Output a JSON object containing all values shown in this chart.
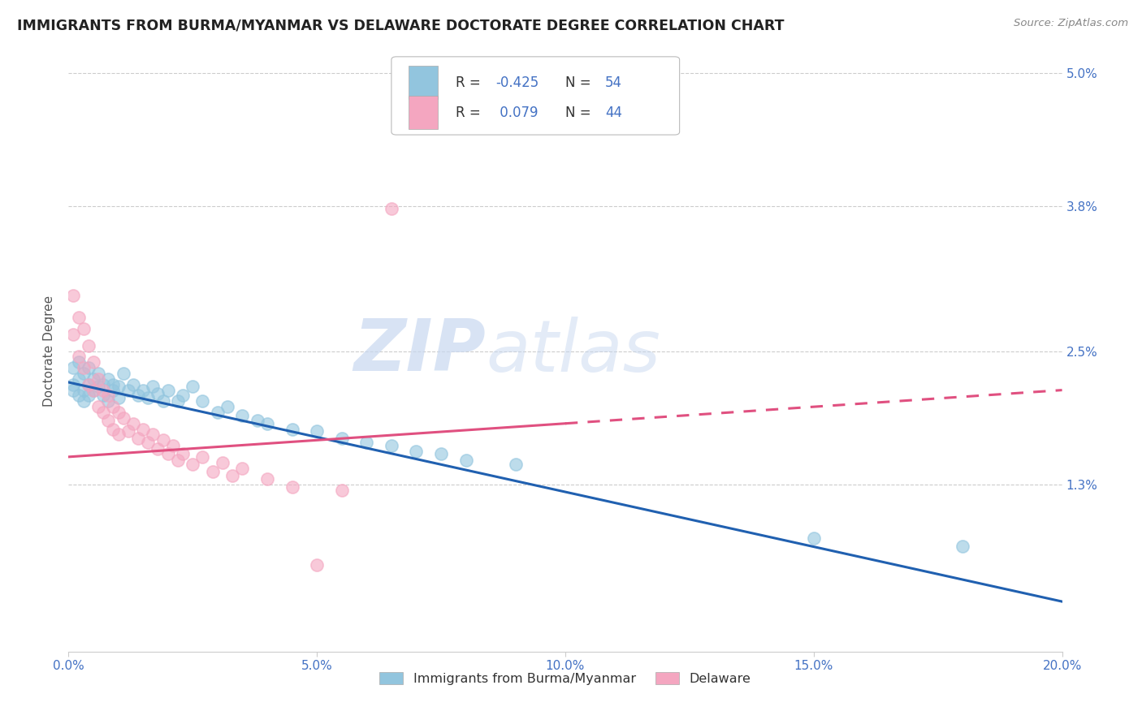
{
  "title": "IMMIGRANTS FROM BURMA/MYANMAR VS DELAWARE DOCTORATE DEGREE CORRELATION CHART",
  "source_text": "Source: ZipAtlas.com",
  "ylabel": "Doctorate Degree",
  "xlim": [
    0.0,
    0.2
  ],
  "ylim": [
    -0.002,
    0.052
  ],
  "yticks": [
    0.013,
    0.025,
    0.038,
    0.05
  ],
  "ytick_labels": [
    "1.3%",
    "2.5%",
    "3.8%",
    "5.0%"
  ],
  "xticks": [
    0.0,
    0.05,
    0.1,
    0.15,
    0.2
  ],
  "xtick_labels": [
    "0.0%",
    "5.0%",
    "10.0%",
    "15.0%",
    "20.0%"
  ],
  "blue_color": "#92c5de",
  "pink_color": "#f4a6c0",
  "blue_line_color": "#2060b0",
  "pink_line_color": "#e05080",
  "R_blue": -0.425,
  "N_blue": 54,
  "R_pink": 0.079,
  "N_pink": 44,
  "legend_blue_label": "Immigrants from Burma/Myanmar",
  "legend_pink_label": "Delaware",
  "watermark_zip": "ZIP",
  "watermark_atlas": "atlas",
  "axis_color": "#4472c4",
  "tick_color": "#4472c4",
  "background_color": "#ffffff",
  "grid_color": "#cccccc",
  "blue_scatter": [
    [
      0.001,
      0.0235
    ],
    [
      0.001,
      0.022
    ],
    [
      0.001,
      0.0215
    ],
    [
      0.002,
      0.024
    ],
    [
      0.002,
      0.0225
    ],
    [
      0.002,
      0.021
    ],
    [
      0.003,
      0.023
    ],
    [
      0.003,
      0.0215
    ],
    [
      0.003,
      0.0205
    ],
    [
      0.004,
      0.0235
    ],
    [
      0.004,
      0.022
    ],
    [
      0.004,
      0.021
    ],
    [
      0.005,
      0.0225
    ],
    [
      0.005,
      0.0215
    ],
    [
      0.006,
      0.023
    ],
    [
      0.006,
      0.0218
    ],
    [
      0.007,
      0.022
    ],
    [
      0.007,
      0.021
    ],
    [
      0.008,
      0.0225
    ],
    [
      0.008,
      0.0205
    ],
    [
      0.009,
      0.022
    ],
    [
      0.009,
      0.0215
    ],
    [
      0.01,
      0.0218
    ],
    [
      0.01,
      0.0208
    ],
    [
      0.011,
      0.023
    ],
    [
      0.012,
      0.0215
    ],
    [
      0.013,
      0.022
    ],
    [
      0.014,
      0.021
    ],
    [
      0.015,
      0.0215
    ],
    [
      0.016,
      0.0208
    ],
    [
      0.017,
      0.0218
    ],
    [
      0.018,
      0.0212
    ],
    [
      0.019,
      0.0205
    ],
    [
      0.02,
      0.0215
    ],
    [
      0.022,
      0.0205
    ],
    [
      0.023,
      0.021
    ],
    [
      0.025,
      0.0218
    ],
    [
      0.027,
      0.0205
    ],
    [
      0.03,
      0.0195
    ],
    [
      0.032,
      0.02
    ],
    [
      0.035,
      0.0192
    ],
    [
      0.038,
      0.0188
    ],
    [
      0.04,
      0.0185
    ],
    [
      0.045,
      0.018
    ],
    [
      0.05,
      0.0178
    ],
    [
      0.055,
      0.0172
    ],
    [
      0.06,
      0.0168
    ],
    [
      0.065,
      0.0165
    ],
    [
      0.07,
      0.016
    ],
    [
      0.075,
      0.0158
    ],
    [
      0.08,
      0.0152
    ],
    [
      0.09,
      0.0148
    ],
    [
      0.15,
      0.0082
    ],
    [
      0.18,
      0.0075
    ]
  ],
  "pink_scatter": [
    [
      0.001,
      0.03
    ],
    [
      0.001,
      0.0265
    ],
    [
      0.002,
      0.028
    ],
    [
      0.002,
      0.0245
    ],
    [
      0.003,
      0.027
    ],
    [
      0.003,
      0.0235
    ],
    [
      0.004,
      0.0255
    ],
    [
      0.004,
      0.022
    ],
    [
      0.005,
      0.024
    ],
    [
      0.005,
      0.0215
    ],
    [
      0.006,
      0.0225
    ],
    [
      0.006,
      0.02
    ],
    [
      0.007,
      0.0215
    ],
    [
      0.007,
      0.0195
    ],
    [
      0.008,
      0.021
    ],
    [
      0.008,
      0.0188
    ],
    [
      0.009,
      0.02
    ],
    [
      0.009,
      0.018
    ],
    [
      0.01,
      0.0195
    ],
    [
      0.01,
      0.0175
    ],
    [
      0.011,
      0.019
    ],
    [
      0.012,
      0.0178
    ],
    [
      0.013,
      0.0185
    ],
    [
      0.014,
      0.0172
    ],
    [
      0.015,
      0.018
    ],
    [
      0.016,
      0.0168
    ],
    [
      0.017,
      0.0175
    ],
    [
      0.018,
      0.0162
    ],
    [
      0.019,
      0.017
    ],
    [
      0.02,
      0.0158
    ],
    [
      0.021,
      0.0165
    ],
    [
      0.022,
      0.0152
    ],
    [
      0.023,
      0.0158
    ],
    [
      0.025,
      0.0148
    ],
    [
      0.027,
      0.0155
    ],
    [
      0.029,
      0.0142
    ],
    [
      0.031,
      0.015
    ],
    [
      0.033,
      0.0138
    ],
    [
      0.035,
      0.0145
    ],
    [
      0.04,
      0.0135
    ],
    [
      0.045,
      0.0128
    ],
    [
      0.05,
      0.0058
    ],
    [
      0.055,
      0.0125
    ],
    [
      0.065,
      0.0378
    ]
  ],
  "blue_line": [
    [
      0.0,
      0.0222
    ],
    [
      0.2,
      0.0025
    ]
  ],
  "pink_line_solid": [
    [
      0.0,
      0.0155
    ],
    [
      0.1,
      0.0185
    ]
  ],
  "pink_line_dash": [
    [
      0.1,
      0.0185
    ],
    [
      0.2,
      0.0215
    ]
  ]
}
